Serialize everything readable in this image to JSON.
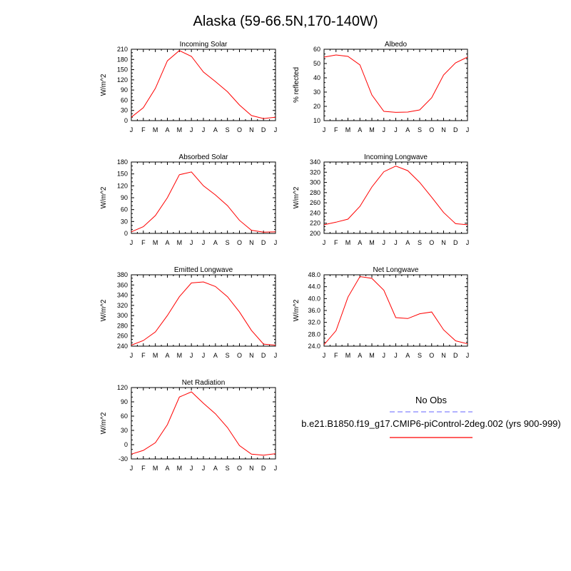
{
  "title": "Alaska (59-66.5N,170-140W)",
  "months": [
    "J",
    "F",
    "M",
    "A",
    "M",
    "J",
    "J",
    "A",
    "S",
    "O",
    "N",
    "D",
    "J"
  ],
  "colors": {
    "model": "#ff0000",
    "obs": "#9999ff",
    "axis": "#000000"
  },
  "legend": {
    "obs_label": "No Obs",
    "model_label": "b.e21.B1850.f19_g17.CMIP6-piControl-2deg.002 (yrs 900-999)"
  },
  "chart_data": [
    {
      "type": "line",
      "title": "Incoming Solar",
      "ylabel": "W/m^2",
      "ylim": [
        0,
        210
      ],
      "yticks": [
        0,
        30,
        60,
        90,
        120,
        150,
        180,
        210
      ],
      "ytick_decimals": 0,
      "series": [
        {
          "values": [
            10,
            38,
            95,
            176,
            206,
            189,
            143,
            115,
            85,
            46,
            15,
            6,
            10
          ]
        }
      ]
    },
    {
      "type": "line",
      "title": "Albedo",
      "ylabel": "% reflected",
      "ylim": [
        10,
        60
      ],
      "yticks": [
        10,
        20,
        30,
        40,
        50,
        60
      ],
      "ytick_decimals": 0,
      "series": [
        {
          "values": [
            54.5,
            56,
            55,
            49,
            28,
            16.5,
            15.8,
            16,
            17.5,
            26,
            42,
            50.5,
            54.5
          ]
        }
      ]
    },
    {
      "type": "line",
      "title": "Absorbed Solar",
      "ylabel": "W/m^2",
      "ylim": [
        0,
        180
      ],
      "yticks": [
        0,
        30,
        60,
        90,
        120,
        150,
        180
      ],
      "ytick_decimals": 0,
      "series": [
        {
          "values": [
            4,
            17,
            45,
            90,
            148,
            155,
            120,
            97,
            70,
            33,
            8,
            3,
            4
          ]
        }
      ]
    },
    {
      "type": "line",
      "title": "Incoming Longwave",
      "ylabel": "W/m^2",
      "ylim": [
        200,
        340
      ],
      "yticks": [
        200,
        220,
        240,
        260,
        280,
        300,
        320,
        340
      ],
      "ytick_decimals": 0,
      "series": [
        {
          "values": [
            217,
            222,
            228,
            253,
            291,
            321,
            332,
            323,
            300,
            271,
            241,
            219,
            217
          ]
        }
      ]
    },
    {
      "type": "line",
      "title": "Emitted Longwave",
      "ylabel": "W/m^2",
      "ylim": [
        240,
        380
      ],
      "yticks": [
        240,
        260,
        280,
        300,
        320,
        340,
        360,
        380
      ],
      "ytick_decimals": 0,
      "series": [
        {
          "values": [
            242,
            251,
            268,
            300,
            337,
            364,
            366,
            357,
            337,
            307,
            271,
            244,
            242
          ]
        }
      ]
    },
    {
      "type": "line",
      "title": "Net Longwave",
      "ylabel": "W/m^2",
      "ylim": [
        24,
        48
      ],
      "yticks": [
        24,
        28,
        32,
        36,
        40,
        44,
        48
      ],
      "ytick_decimals": 1,
      "series": [
        {
          "values": [
            24.5,
            29.2,
            40.5,
            47.4,
            46.8,
            42.8,
            33.6,
            33.3,
            34.9,
            35.5,
            29.5,
            25.8,
            24.8
          ]
        }
      ]
    },
    {
      "type": "line",
      "title": "Net Radiation",
      "ylabel": "W/m^2",
      "ylim": [
        -30,
        120
      ],
      "yticks": [
        -30,
        0,
        30,
        60,
        90,
        120
      ],
      "ytick_decimals": 0,
      "series": [
        {
          "values": [
            -20,
            -12,
            4,
            42,
            100,
            111,
            87,
            65,
            36,
            -2,
            -20,
            -22,
            -19
          ]
        }
      ]
    }
  ]
}
